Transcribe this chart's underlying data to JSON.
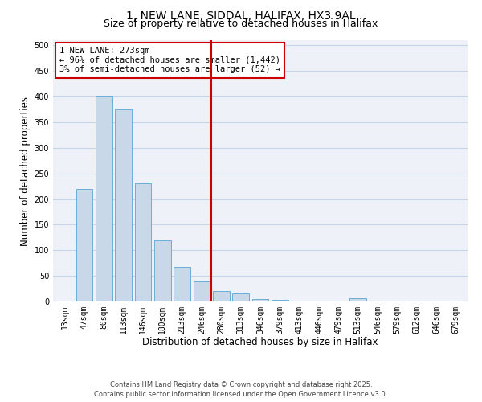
{
  "title": "1, NEW LANE, SIDDAL, HALIFAX, HX3 9AL",
  "subtitle": "Size of property relative to detached houses in Halifax",
  "xlabel": "Distribution of detached houses by size in Halifax",
  "ylabel": "Number of detached properties",
  "bar_labels": [
    "13sqm",
    "47sqm",
    "80sqm",
    "113sqm",
    "146sqm",
    "180sqm",
    "213sqm",
    "246sqm",
    "280sqm",
    "313sqm",
    "346sqm",
    "379sqm",
    "413sqm",
    "446sqm",
    "479sqm",
    "513sqm",
    "546sqm",
    "579sqm",
    "612sqm",
    "646sqm",
    "679sqm"
  ],
  "bar_values": [
    0,
    220,
    400,
    375,
    230,
    120,
    68,
    40,
    20,
    15,
    5,
    3,
    0,
    0,
    0,
    7,
    0,
    0,
    0,
    0,
    0
  ],
  "bar_color": "#c8d8e8",
  "bar_edge_color": "#6baed6",
  "vline_color": "#cc0000",
  "vline_index": 8,
  "annotation_text": "1 NEW LANE: 273sqm\n← 96% of detached houses are smaller (1,442)\n3% of semi-detached houses are larger (52) →",
  "annotation_box_edge": "#cc0000",
  "ylim": [
    0,
    510
  ],
  "yticks": [
    0,
    50,
    100,
    150,
    200,
    250,
    300,
    350,
    400,
    450,
    500
  ],
  "grid_color": "#c8d4e8",
  "bg_color": "#eef2f8",
  "footer_line1": "Contains HM Land Registry data © Crown copyright and database right 2025.",
  "footer_line2": "Contains public sector information licensed under the Open Government Licence v3.0.",
  "title_fontsize": 10,
  "subtitle_fontsize": 9,
  "axis_label_fontsize": 8.5,
  "tick_fontsize": 7,
  "annotation_fontsize": 7.5,
  "footer_fontsize": 6
}
